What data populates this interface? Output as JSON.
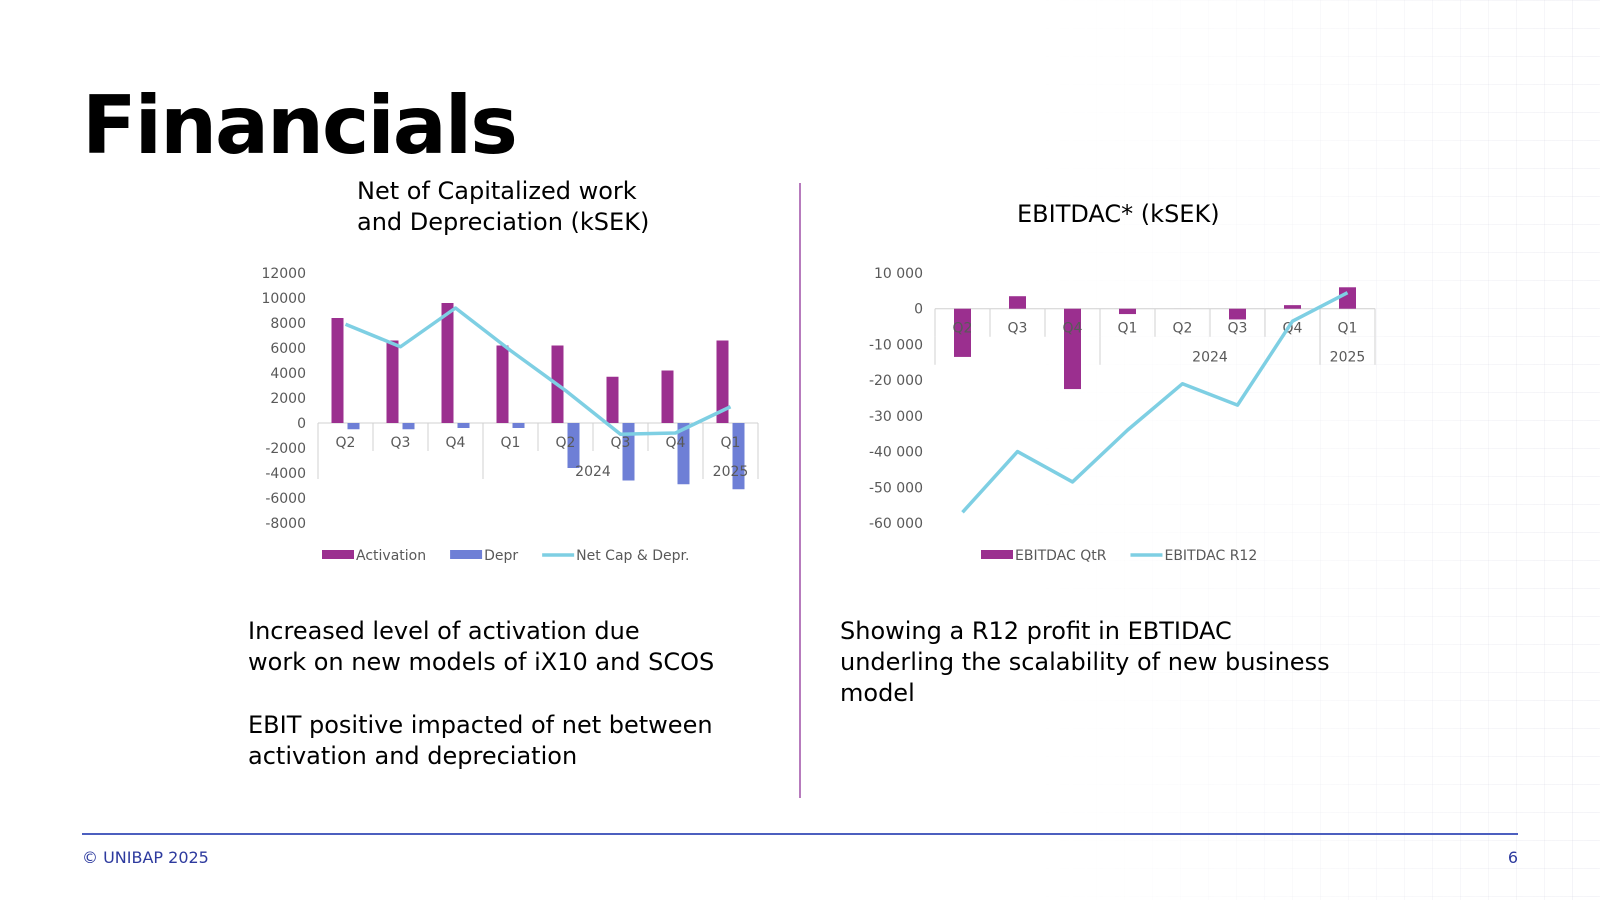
{
  "title": "Financials",
  "colors": {
    "activation": "#9b2f8f",
    "depr": "#6e7fd6",
    "line": "#7ecfe3",
    "axis": "#d0d0d0",
    "footer": "#2d3a9e",
    "divider": "#b77bbd"
  },
  "left_panel": {
    "title_lines": [
      "Net of Capitalized work",
      "and Depreciation (kSEK)"
    ],
    "text_1": [
      "Increased level of activation due",
      "work on new models of iX10 and SCOS"
    ],
    "text_2": [
      "EBIT positive impacted of net between",
      "activation and depreciation"
    ]
  },
  "right_panel": {
    "title_lines": [
      "EBITDAC* (kSEK)"
    ],
    "text": [
      "Showing a R12 profit in EBTIDAC",
      "underling the scalability of new business",
      "model"
    ]
  },
  "footer": {
    "copyright": "© UNIBAP 2025",
    "page_number": "6"
  },
  "chart_data": [
    {
      "type": "bar",
      "title": "Net of Capitalized work and Depreciation (kSEK)",
      "categories": [
        "Q2",
        "Q3",
        "Q4",
        "Q1",
        "Q2",
        "Q3",
        "Q4",
        "Q1"
      ],
      "year_groups": [
        {
          "label": "2024",
          "start": 3,
          "end": 6
        },
        {
          "label": "2025",
          "start": 7,
          "end": 7
        }
      ],
      "series": [
        {
          "name": "Activation",
          "kind": "bar",
          "values": [
            8400,
            6600,
            9600,
            6200,
            6200,
            3700,
            4200,
            6600
          ]
        },
        {
          "name": "Depr",
          "kind": "bar",
          "values": [
            -500,
            -500,
            -400,
            -400,
            -3600,
            -4600,
            -4900,
            -5300
          ]
        },
        {
          "name": "Net Cap & Depr.",
          "kind": "line",
          "values": [
            7900,
            6100,
            9200,
            5800,
            2600,
            -900,
            -800,
            1300
          ]
        }
      ],
      "yticks": [
        "12000",
        "10000",
        "8000",
        "6000",
        "4000",
        "2000",
        "0",
        "-2000",
        "-4000",
        "-6000",
        "-8000"
      ],
      "ylim": [
        -8000,
        12000
      ],
      "legend": [
        "Activation",
        "Depr",
        "Net Cap & Depr."
      ]
    },
    {
      "type": "bar",
      "title": "EBITDAC* (kSEK)",
      "categories": [
        "Q2",
        "Q3",
        "Q4",
        "Q1",
        "Q2",
        "Q3",
        "Q4",
        "Q1"
      ],
      "year_groups": [
        {
          "label": "2024",
          "start": 3,
          "end": 6
        },
        {
          "label": "2025",
          "start": 7,
          "end": 7
        }
      ],
      "series": [
        {
          "name": "EBITDAC QtR",
          "kind": "bar",
          "values": [
            -13500,
            3500,
            -22500,
            -1500,
            0,
            -3000,
            1000,
            6000
          ]
        },
        {
          "name": "EBITDAC R12",
          "kind": "line",
          "values": [
            -57000,
            -40000,
            -48500,
            -34000,
            -21000,
            -27000,
            -3500,
            4500
          ]
        }
      ],
      "yticks": [
        "10 000",
        "0",
        "-10 000",
        "-20 000",
        "-30 000",
        "-40 000",
        "-50 000",
        "-60 000"
      ],
      "ylim": [
        -60000,
        10000
      ],
      "legend": [
        "EBITDAC QtR",
        "EBITDAC R12"
      ]
    }
  ]
}
